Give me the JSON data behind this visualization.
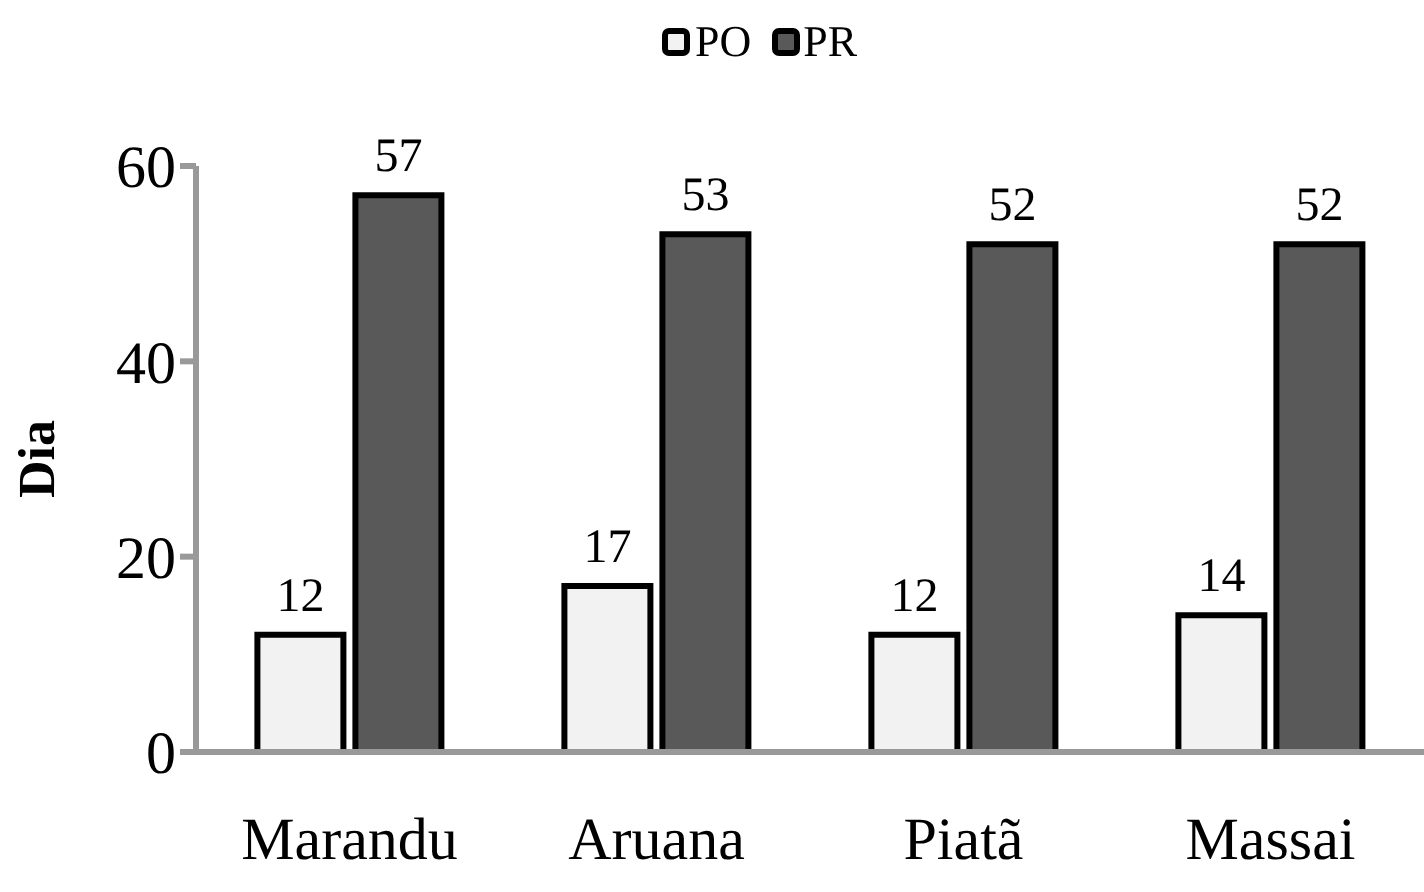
{
  "chart_data": {
    "type": "bar",
    "ylabel": "Dia",
    "categories": [
      "Marandu",
      "Aruana",
      "Piatã",
      "Massai"
    ],
    "series": [
      {
        "name": "PO",
        "color": "#f2f2f2",
        "values": [
          12,
          17,
          12,
          14
        ]
      },
      {
        "name": "PR",
        "color": "#595959",
        "values": [
          57,
          53,
          52,
          52
        ]
      }
    ],
    "ylim": [
      0,
      60
    ],
    "yticks": [
      0,
      20,
      40,
      60
    ],
    "data_labels": true,
    "legend": "top",
    "grid": false
  }
}
